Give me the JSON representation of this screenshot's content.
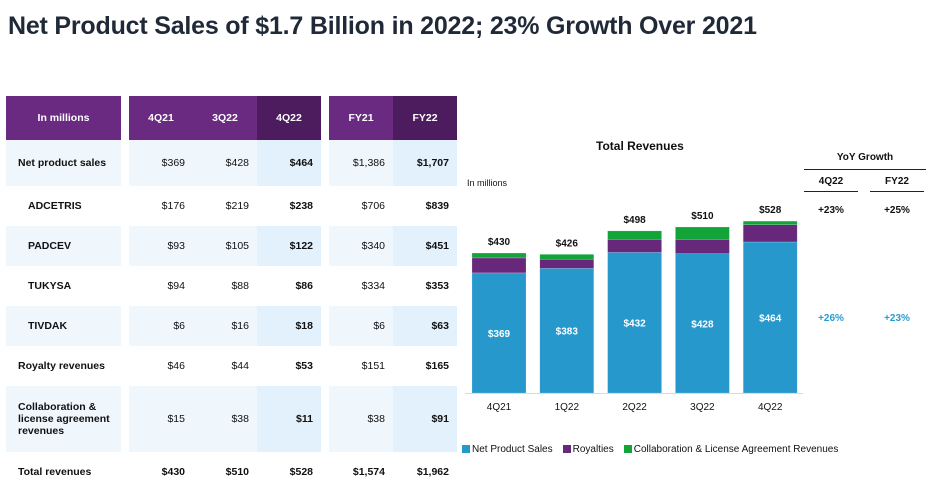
{
  "title": "Net Product Sales of $1.7 Billion in 2022; 23% Growth Over 2021",
  "table": {
    "header_label": "In millions",
    "columns": [
      "4Q21",
      "3Q22",
      "4Q22",
      "FY21",
      "FY22"
    ],
    "rows": [
      {
        "label": "Net product sales",
        "values": [
          "$369",
          "$428",
          "$464",
          "$1,386",
          "$1,707"
        ]
      },
      {
        "label": "ADCETRIS",
        "values": [
          "$176",
          "$219",
          "$238",
          "$706",
          "$839"
        ]
      },
      {
        "label": "PADCEV",
        "values": [
          "$93",
          "$105",
          "$122",
          "$340",
          "$451"
        ]
      },
      {
        "label": "TUKYSA",
        "values": [
          "$94",
          "$88",
          "$86",
          "$334",
          "$353"
        ]
      },
      {
        "label": "TIVDAK",
        "values": [
          "$6",
          "$16",
          "$18",
          "$6",
          "$63"
        ]
      },
      {
        "label": "Royalty revenues",
        "values": [
          "$46",
          "$44",
          "$53",
          "$151",
          "$165"
        ]
      },
      {
        "label": "Collaboration & license agreement revenues",
        "values": [
          "$15",
          "$38",
          "$11",
          "$38",
          "$91"
        ]
      },
      {
        "label": "Total revenues",
        "values": [
          "$430",
          "$510",
          "$528",
          "$1,574",
          "$1,962"
        ]
      }
    ]
  },
  "yoy": {
    "title": "YoY Growth",
    "columns": [
      "4Q22",
      "FY22"
    ],
    "total_revenue_growth": [
      "+23%",
      "+25%"
    ],
    "net_product_sales_growth": [
      "+26%",
      "+23%"
    ]
  },
  "colors": {
    "net_product_sales": "#2698cc",
    "royalties": "#67287c",
    "collaboration": "#12a438",
    "header_purple": "#6a2a82",
    "header_dark_purple": "#4c1c5e",
    "growth_blue": "#2a9bd1"
  },
  "chart_data": {
    "type": "bar",
    "stacked": true,
    "title": "Total Revenues",
    "ylabel": "In millions",
    "xlabel": "",
    "categories": [
      "4Q21",
      "1Q22",
      "2Q22",
      "3Q22",
      "4Q22"
    ],
    "series": [
      {
        "name": "Net Product Sales",
        "values": [
          369,
          383,
          432,
          428,
          464
        ],
        "labels": [
          "$369",
          "$383",
          "$432",
          "$428",
          "$464"
        ]
      },
      {
        "name": "Royalties",
        "values": [
          46,
          28,
          40,
          44,
          53
        ]
      },
      {
        "name": "Collaboration & License Agreement Revenues",
        "values": [
          15,
          15,
          26,
          38,
          11
        ]
      }
    ],
    "totals": [
      430,
      426,
      498,
      510,
      528
    ],
    "total_labels": [
      "$430",
      "$426",
      "$498",
      "$510",
      "$528"
    ],
    "ylim": [
      0,
      560
    ],
    "grid": false,
    "legend": "bottom"
  }
}
